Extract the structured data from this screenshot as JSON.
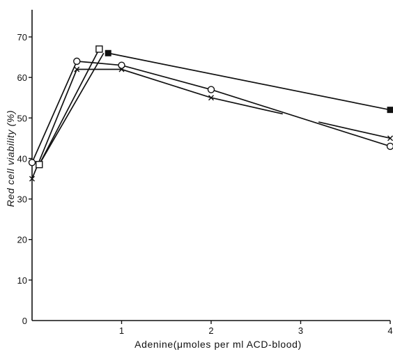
{
  "chart_data": {
    "type": "line",
    "title": "",
    "xlabel": "Adenine(μmoles  per  ml  ACD-blood)",
    "ylabel": "Red  cell  viability  (%)",
    "xlim": [
      0,
      4
    ],
    "ylim": [
      0,
      75
    ],
    "x_ticks": [
      1,
      2,
      3,
      4
    ],
    "x_tick_labels": [
      "1",
      "2",
      "3",
      "4"
    ],
    "y_ticks": [
      0,
      10,
      20,
      30,
      40,
      50,
      60,
      70
    ],
    "y_tick_labels": [
      "0",
      "10",
      "20",
      "30",
      "40",
      "50",
      "60",
      "70"
    ],
    "grid": false,
    "legend": "none",
    "series": [
      {
        "marker": "open-circle",
        "x": [
          0,
          0.5,
          1,
          2,
          4
        ],
        "y": [
          39,
          64,
          63,
          57,
          43
        ]
      },
      {
        "marker": "cross",
        "x": [
          0,
          0.5,
          1,
          2,
          2.8,
          3.2,
          4
        ],
        "y": [
          35,
          62,
          62,
          55,
          51,
          49,
          45
        ],
        "segments": [
          [
            0,
            4
          ],
          [
            5,
            6
          ]
        ]
      },
      {
        "marker": "open-square",
        "x": [
          0.08,
          0.75
        ],
        "y": [
          38.5,
          67
        ]
      },
      {
        "marker": "filled-square",
        "x": [
          0.85,
          4
        ],
        "y": [
          66,
          52
        ]
      }
    ],
    "connector": {
      "from": [
        0.08,
        38.5
      ],
      "to": [
        0.8,
        66
      ]
    }
  }
}
